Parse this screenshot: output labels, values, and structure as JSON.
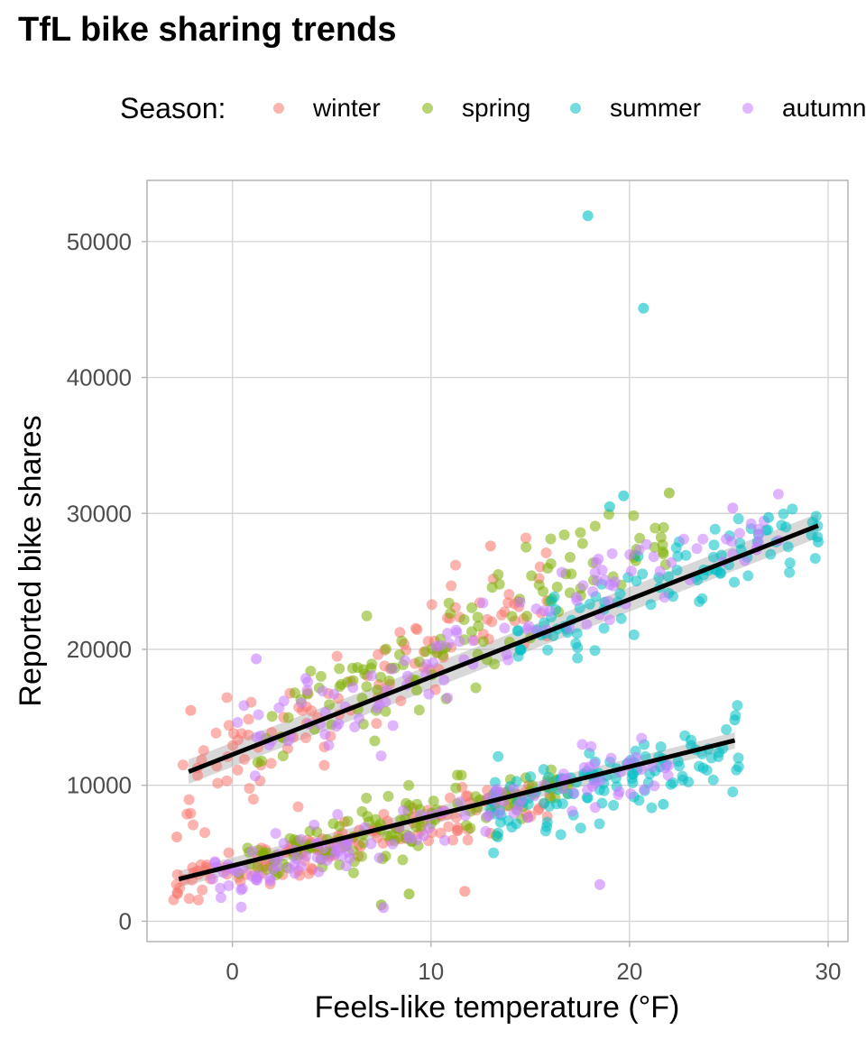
{
  "chart_data": {
    "type": "scatter",
    "title": "TfL bike sharing trends",
    "xlabel": "Feels-like temperature (°F)",
    "ylabel": "Reported bike shares",
    "xlim": [
      -4.3,
      31.0
    ],
    "ylim": [
      -1500,
      54500
    ],
    "x_ticks": [
      "0",
      "10",
      "20",
      "30"
    ],
    "x_tick_values": [
      0,
      10,
      20,
      30
    ],
    "y_ticks": [
      "0",
      "10000",
      "20000",
      "30000",
      "40000",
      "50000"
    ],
    "y_tick_values": [
      0,
      10000,
      20000,
      30000,
      40000,
      50000
    ],
    "grid": true,
    "legend": {
      "title": "Season:",
      "position": "top"
    },
    "series": [
      {
        "name": "winter",
        "color": "#F8766D"
      },
      {
        "name": "spring",
        "color": "#7CAE00"
      },
      {
        "name": "summer",
        "color": "#00BFC4"
      },
      {
        "name": "autumn",
        "color": "#C77CFF"
      }
    ],
    "point_clouds": [
      {
        "series": "winter",
        "kind": "weekday",
        "x_range": [
          -2.5,
          16
        ],
        "trend": [
          11800,
          850
        ],
        "spread": 3200,
        "count": 115
      },
      {
        "series": "winter",
        "kind": "weekend",
        "x_range": [
          -3,
          16
        ],
        "trend": [
          3600,
          370
        ],
        "spread": 1600,
        "count": 140
      },
      {
        "series": "spring",
        "kind": "weekday",
        "x_range": [
          1,
          22
        ],
        "trend": [
          12000,
          780
        ],
        "spread": 3200,
        "count": 120
      },
      {
        "series": "spring",
        "kind": "weekend",
        "x_range": [
          0,
          17
        ],
        "trend": [
          4000,
          360
        ],
        "spread": 1700,
        "count": 140
      },
      {
        "series": "summer",
        "kind": "weekday",
        "x_range": [
          14,
          29.5
        ],
        "trend": [
          12500,
          560
        ],
        "spread": 2600,
        "count": 95
      },
      {
        "series": "summer",
        "kind": "weekend",
        "x_range": [
          13,
          25.5
        ],
        "trend": [
          3800,
          350
        ],
        "spread": 2400,
        "count": 120
      },
      {
        "series": "autumn",
        "kind": "weekday",
        "x_range": [
          0,
          28
        ],
        "trend": [
          12300,
          640
        ],
        "spread": 2500,
        "count": 115
      },
      {
        "series": "autumn",
        "kind": "weekend",
        "x_range": [
          -1,
          22
        ],
        "trend": [
          3600,
          370
        ],
        "spread": 1700,
        "count": 130
      }
    ],
    "notable_points": [
      {
        "series": "summer",
        "x": 17.9,
        "y": 51900
      },
      {
        "series": "summer",
        "x": 20.7,
        "y": 45100
      },
      {
        "series": "autumn",
        "x": 1.2,
        "y": 19300
      },
      {
        "series": "spring",
        "x": 22.0,
        "y": 31500
      },
      {
        "series": "summer",
        "x": 29.5,
        "y": 27900
      },
      {
        "series": "autumn",
        "x": 25.2,
        "y": 30400
      },
      {
        "series": "winter",
        "x": -2.1,
        "y": 15500
      },
      {
        "series": "winter",
        "x": 13.0,
        "y": 27600
      },
      {
        "series": "spring",
        "x": 7.5,
        "y": 1200
      },
      {
        "series": "autumn",
        "x": 7.6,
        "y": 1000
      },
      {
        "series": "autumn",
        "x": 18.5,
        "y": 2700
      },
      {
        "series": "summer",
        "x": 21.7,
        "y": 8600
      },
      {
        "series": "winter",
        "x": 11.7,
        "y": 2200
      },
      {
        "series": "winter",
        "x": -2.8,
        "y": 6200
      },
      {
        "series": "summer",
        "x": 25.3,
        "y": 14800
      },
      {
        "series": "summer",
        "x": 19.0,
        "y": 30500
      },
      {
        "series": "summer",
        "x": 19.7,
        "y": 31300
      },
      {
        "series": "spring",
        "x": 8.9,
        "y": 2000
      },
      {
        "series": "autumn",
        "x": 27.5,
        "y": 28000
      },
      {
        "series": "summer",
        "x": 27.0,
        "y": 29700
      }
    ],
    "trend_lines": [
      {
        "x": [
          -2.2,
          29.5
        ],
        "y": [
          11000,
          29100
        ],
        "ci": 450
      },
      {
        "x": [
          -2.7,
          25.3
        ],
        "y": [
          3100,
          13300
        ],
        "ci": 300
      }
    ]
  }
}
